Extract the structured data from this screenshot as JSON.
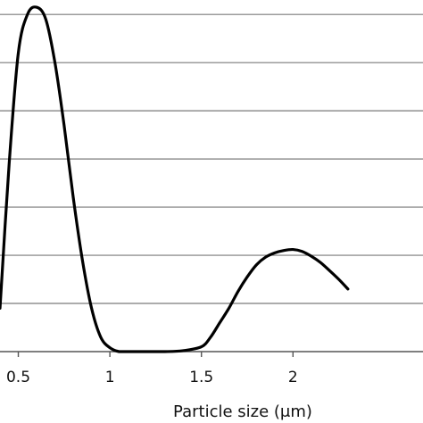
{
  "chart_data": {
    "type": "line",
    "xlabel": "Particle size (μm)",
    "ylabel": "",
    "xlim": [
      0.4,
      2.71
    ],
    "ylim": [
      0,
      7.3
    ],
    "x_ticks": [
      0.5,
      1,
      1.5,
      2
    ],
    "x_tick_labels": [
      "0.5",
      "1",
      "1.5",
      "2"
    ],
    "y_gridlines": [
      1,
      2,
      3,
      4,
      5,
      6,
      7
    ],
    "grid": "horizontal",
    "series": [
      {
        "x": [
          0.4,
          0.45,
          0.5,
          0.55,
          0.6,
          0.65,
          0.7,
          0.75,
          0.8,
          0.85,
          0.9,
          0.95,
          1.0,
          1.05,
          1.1,
          1.2,
          1.3,
          1.4,
          1.5,
          1.55,
          1.6,
          1.65,
          1.7,
          1.75,
          1.8,
          1.85,
          1.9,
          1.95,
          2.0,
          2.05,
          2.1,
          2.15,
          2.2,
          2.25,
          2.3
        ],
        "y": [
          0.9,
          3.9,
          6.2,
          7.0,
          7.15,
          6.9,
          6.0,
          4.7,
          3.2,
          1.9,
          0.9,
          0.3,
          0.08,
          0.0,
          0.0,
          0.0,
          0.0,
          0.02,
          0.1,
          0.3,
          0.6,
          0.9,
          1.25,
          1.55,
          1.8,
          1.96,
          2.05,
          2.1,
          2.12,
          2.08,
          1.98,
          1.85,
          1.68,
          1.5,
          1.3
        ]
      }
    ]
  }
}
